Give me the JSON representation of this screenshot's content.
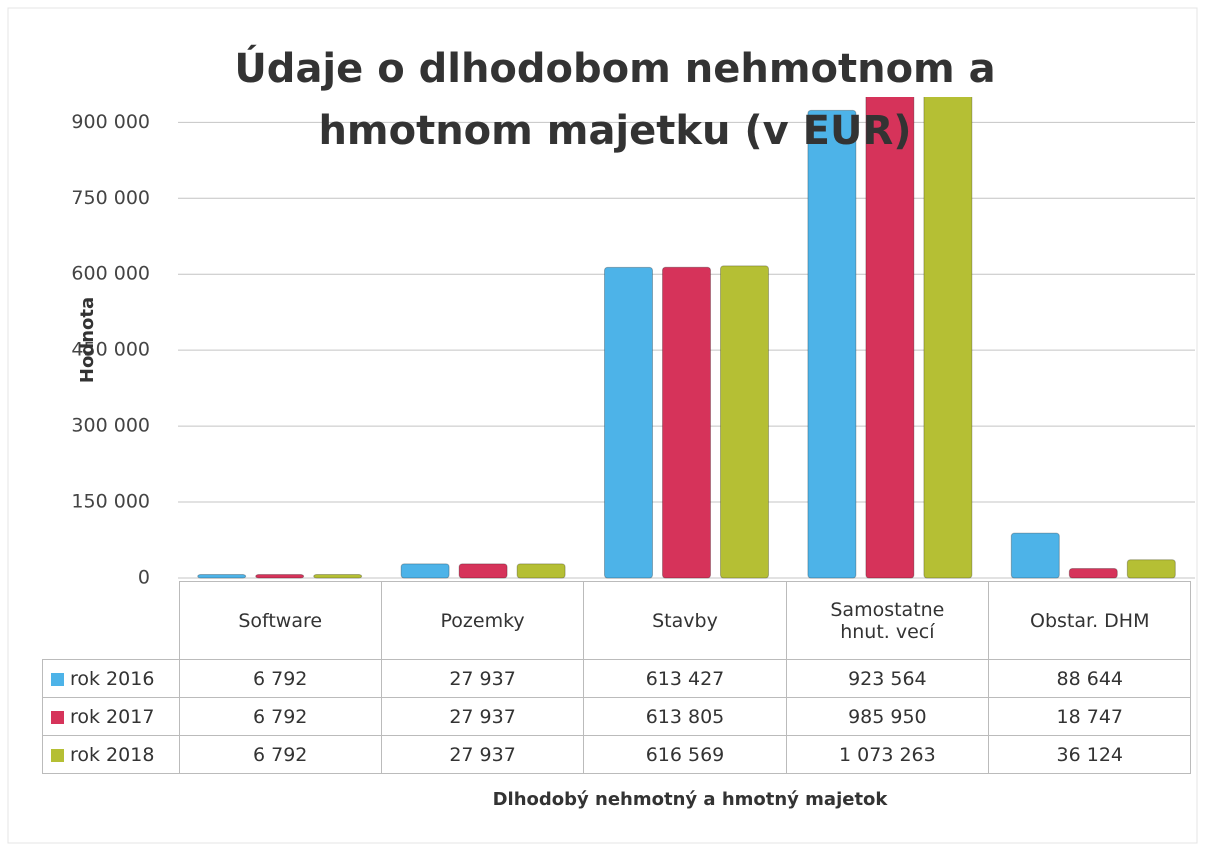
{
  "chart_data": {
    "type": "bar",
    "title": "Údaje o dlhodobom nehmotnom a hmotnom majetku (v EUR)",
    "y_label": "Hodnota",
    "x_label": "Dlhodobý nehmotný a hmotný majetok",
    "categories": [
      "Software",
      "Pozemky",
      "Stavby",
      "Samostatne hnut. vecí",
      "Obstar. DHM"
    ],
    "series": [
      {
        "name": "rok 2016",
        "color": "#4db3e8",
        "values": [
          6792,
          27937,
          613427,
          923564,
          88644
        ],
        "value_labels": [
          "6 792",
          "27 937",
          "613 427",
          "923 564",
          "88 644"
        ]
      },
      {
        "name": "rok 2017",
        "color": "#d6335a",
        "values": [
          6792,
          27937,
          613805,
          985950,
          18747
        ],
        "value_labels": [
          "6 792",
          "27 937",
          "613 805",
          "985 950",
          "18 747"
        ]
      },
      {
        "name": "rok 2018",
        "color": "#b5bf34",
        "values": [
          6792,
          27937,
          616569,
          1073263,
          36124
        ],
        "value_labels": [
          "6 792",
          "27 937",
          "616 569",
          "1 073 263",
          "36 124"
        ]
      }
    ],
    "ylim": [
      0,
      950000
    ],
    "yticks": [
      0,
      {
        "value": 150000,
        "label": "150 000"
      },
      {
        "value": 300000,
        "label": "300 000"
      },
      {
        "value": 450000,
        "label": "450 000"
      },
      {
        "value": 600000,
        "label": "600 000"
      },
      {
        "value": 750000,
        "label": "750 000"
      },
      {
        "value": 900000,
        "label": "900 000"
      }
    ],
    "grid": true,
    "legend": "table"
  }
}
